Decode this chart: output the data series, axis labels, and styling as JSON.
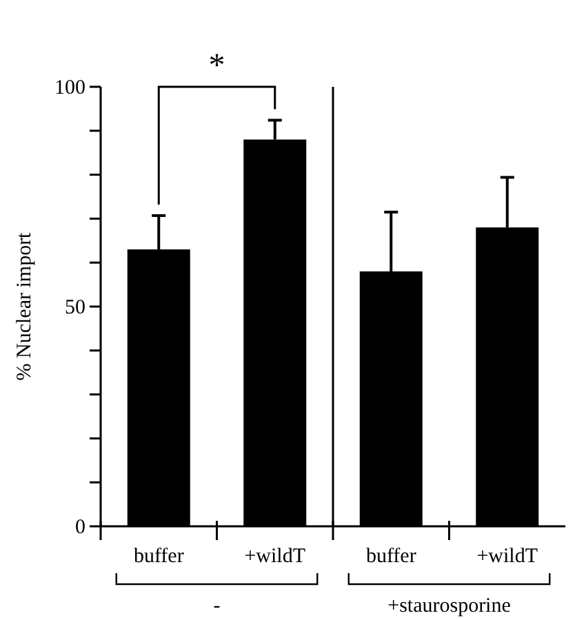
{
  "chart_data": {
    "type": "bar",
    "ylabel": "% Nuclear import",
    "categories": [
      "buffer",
      "+wildT",
      "buffer",
      "+wildT"
    ],
    "series": [
      {
        "color": "#000000",
        "values": [
          63,
          88,
          58,
          68
        ],
        "errors": [
          [
            63,
            70.7
          ],
          [
            88,
            92.4
          ],
          [
            58,
            71.5
          ],
          [
            68,
            79.4
          ]
        ]
      }
    ],
    "ylim": [
      0,
      100
    ],
    "yticks": [
      0,
      {
        "value": 10,
        "label": null
      },
      {
        "value": 20,
        "label": null
      },
      {
        "value": 30,
        "label": null
      },
      {
        "value": 40,
        "label": null
      },
      50,
      {
        "value": 60,
        "label": null
      },
      {
        "value": 70,
        "label": null
      },
      {
        "value": 80,
        "label": null
      },
      {
        "value": 90,
        "label": null
      },
      100
    ],
    "annotations": [
      "*",
      "-",
      "+staurosporine"
    ],
    "grid": false
  }
}
